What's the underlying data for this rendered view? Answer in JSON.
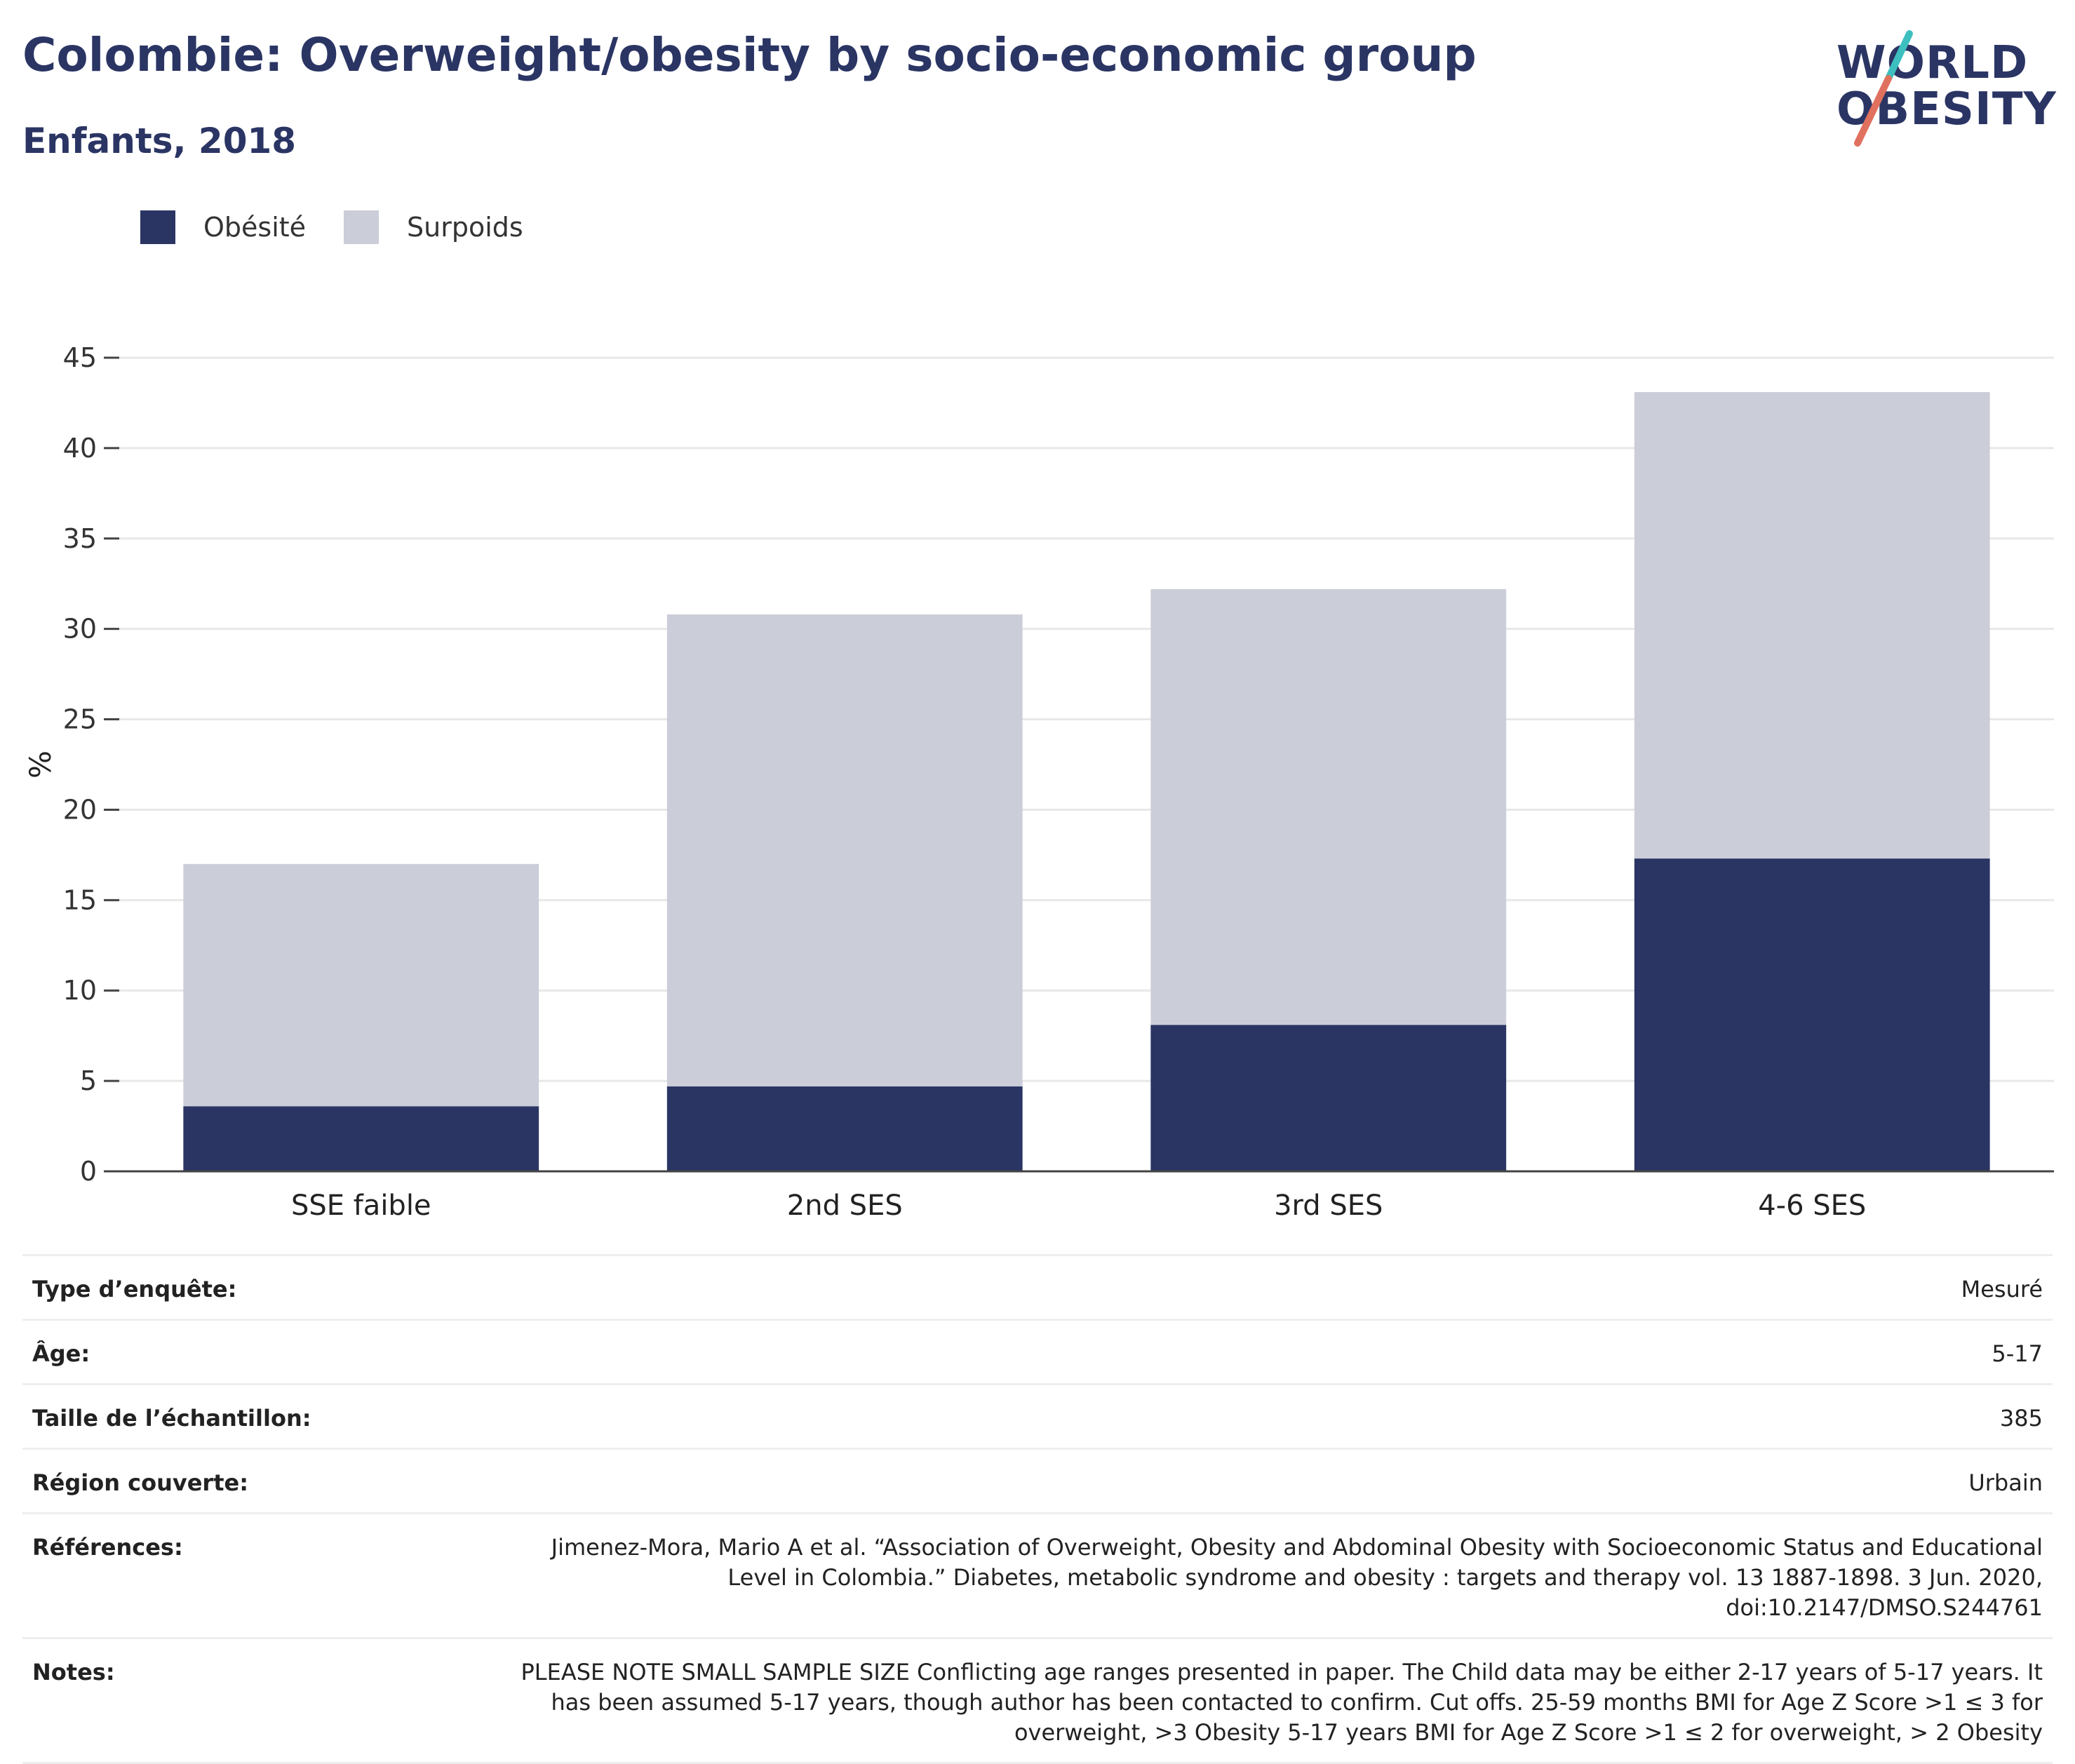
{
  "header": {
    "title": "Colombie: Overweight/obesity by socio-economic group",
    "subtitle": "Enfants, 2018"
  },
  "logo": {
    "line1": "WORLD",
    "line2": "OBESITY",
    "slash_colors": [
      "#3ebfbf",
      "#e0715f"
    ]
  },
  "legend": {
    "items": [
      {
        "label": "Obésité",
        "color": "#2a3564"
      },
      {
        "label": "Surpoids",
        "color": "#cbcdd9"
      }
    ]
  },
  "chart_data": {
    "type": "bar",
    "stacked": true,
    "categories": [
      "SSE faible",
      "2nd SES",
      "3rd SES",
      "4-6 SES"
    ],
    "series": [
      {
        "name": "Obésité",
        "values": [
          3.6,
          4.7,
          8.1,
          17.3
        ],
        "color": "#2a3564"
      },
      {
        "name": "Surpoids",
        "values": [
          13.4,
          26.1,
          24.1,
          25.8
        ],
        "color": "#cbcdd9"
      }
    ],
    "ylabel": "%",
    "ylim": [
      0,
      45
    ],
    "yticks": [
      0,
      5,
      10,
      15,
      20,
      25,
      30,
      35,
      40,
      45
    ],
    "grid": true,
    "legend_position": "top-left"
  },
  "info": {
    "rows": [
      {
        "label": "Type d’enquête:",
        "value": "Mesuré"
      },
      {
        "label": "Âge:",
        "value": "5-17"
      },
      {
        "label": "Taille de l’échantillon:",
        "value": "385"
      },
      {
        "label": "Région couverte:",
        "value": "Urbain"
      },
      {
        "label": "Références:",
        "value": "Jimenez-Mora, Mario A et al. “Association of Overweight, Obesity and Abdominal Obesity with Socioeconomic Status and Educational Level in Colombia.” Diabetes, metabolic syndrome and obesity : targets and therapy vol. 13 1887-1898. 3 Jun. 2020, doi:10.2147/DMSO.S244761"
      },
      {
        "label": "Notes:",
        "value": "PLEASE NOTE SMALL SAMPLE SIZE Conflicting age ranges presented in paper. The Child data may be either 2-17 years of 5-17 years. It has been assumed 5-17 years, though author has been contacted to confirm. Cut offs. 25-59 months BMI for Age Z Score >1 ≤ 3 for overweight, >3 Obesity 5-17 years BMI for Age Z Score >1 ≤ 2 for overweight, > 2 Obesity"
      }
    ]
  }
}
